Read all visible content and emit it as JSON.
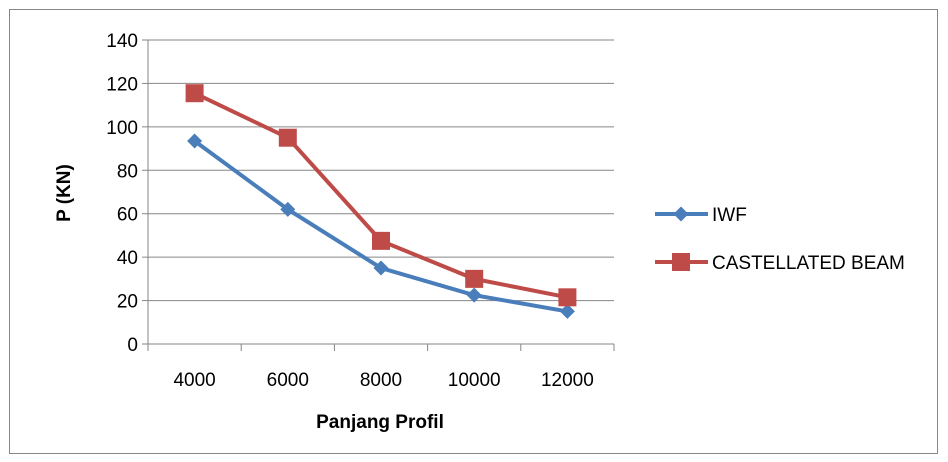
{
  "chart_data": {
    "type": "line",
    "title": "",
    "xlabel": "Panjang Profil",
    "ylabel": "P (KN)",
    "categories": [
      "4000",
      "6000",
      "8000",
      "10000",
      "12000"
    ],
    "ylim": [
      0,
      140
    ],
    "yticks": [
      "0",
      "20",
      "40",
      "60",
      "80",
      "100",
      "120",
      "140"
    ],
    "grid": true,
    "legend_position": "right",
    "series": [
      {
        "name": "IWF",
        "values": [
          93.5,
          62,
          35,
          22.5,
          15
        ],
        "color": "#4a7ebb",
        "marker": "diamond"
      },
      {
        "name": "CASTELLATED BEAM",
        "values": [
          115.5,
          95,
          47.5,
          30,
          21.5
        ],
        "color": "#be4b48",
        "marker": "square"
      }
    ]
  }
}
